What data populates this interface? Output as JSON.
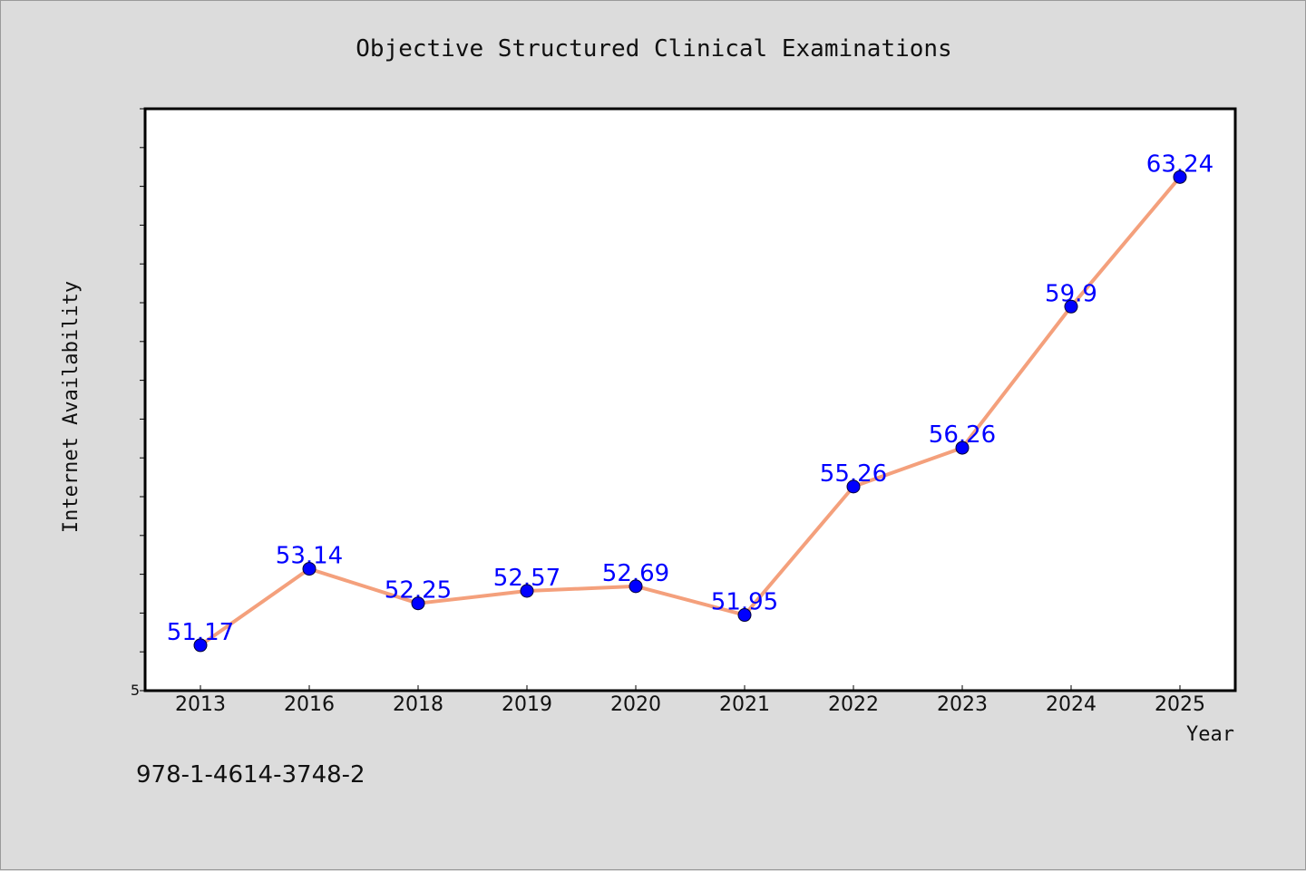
{
  "chart_data": {
    "type": "line",
    "title": "Objective Structured Clinical Examinations",
    "xlabel": "Year",
    "ylabel": "Internet Availability",
    "categories": [
      "2013",
      "2016",
      "2018",
      "2019",
      "2020",
      "2021",
      "2022",
      "2023",
      "2024",
      "2025"
    ],
    "series": [
      {
        "values": [
          51.17,
          53.14,
          52.25,
          52.57,
          52.69,
          51.95,
          55.26,
          56.26,
          59.9,
          63.24
        ],
        "labels": [
          "51.17",
          "53.14",
          "52.25",
          "52.57",
          "52.69",
          "51.95",
          "55.26",
          "56.26",
          "59.9",
          "63.24"
        ],
        "line_color": "#f4a07c",
        "marker_color": "#0000ff"
      }
    ],
    "ylim": [
      50,
      65
    ],
    "y_tick_label": "5",
    "grid": false,
    "legend": "none"
  },
  "footer": {
    "isbn": "978-1-4614-3748-2"
  },
  "colors": {
    "background": "#dcdcdc",
    "plot_background": "#ffffff",
    "line": "#f4a07c",
    "marker": "#0000ff",
    "data_label": "#0000ff"
  }
}
